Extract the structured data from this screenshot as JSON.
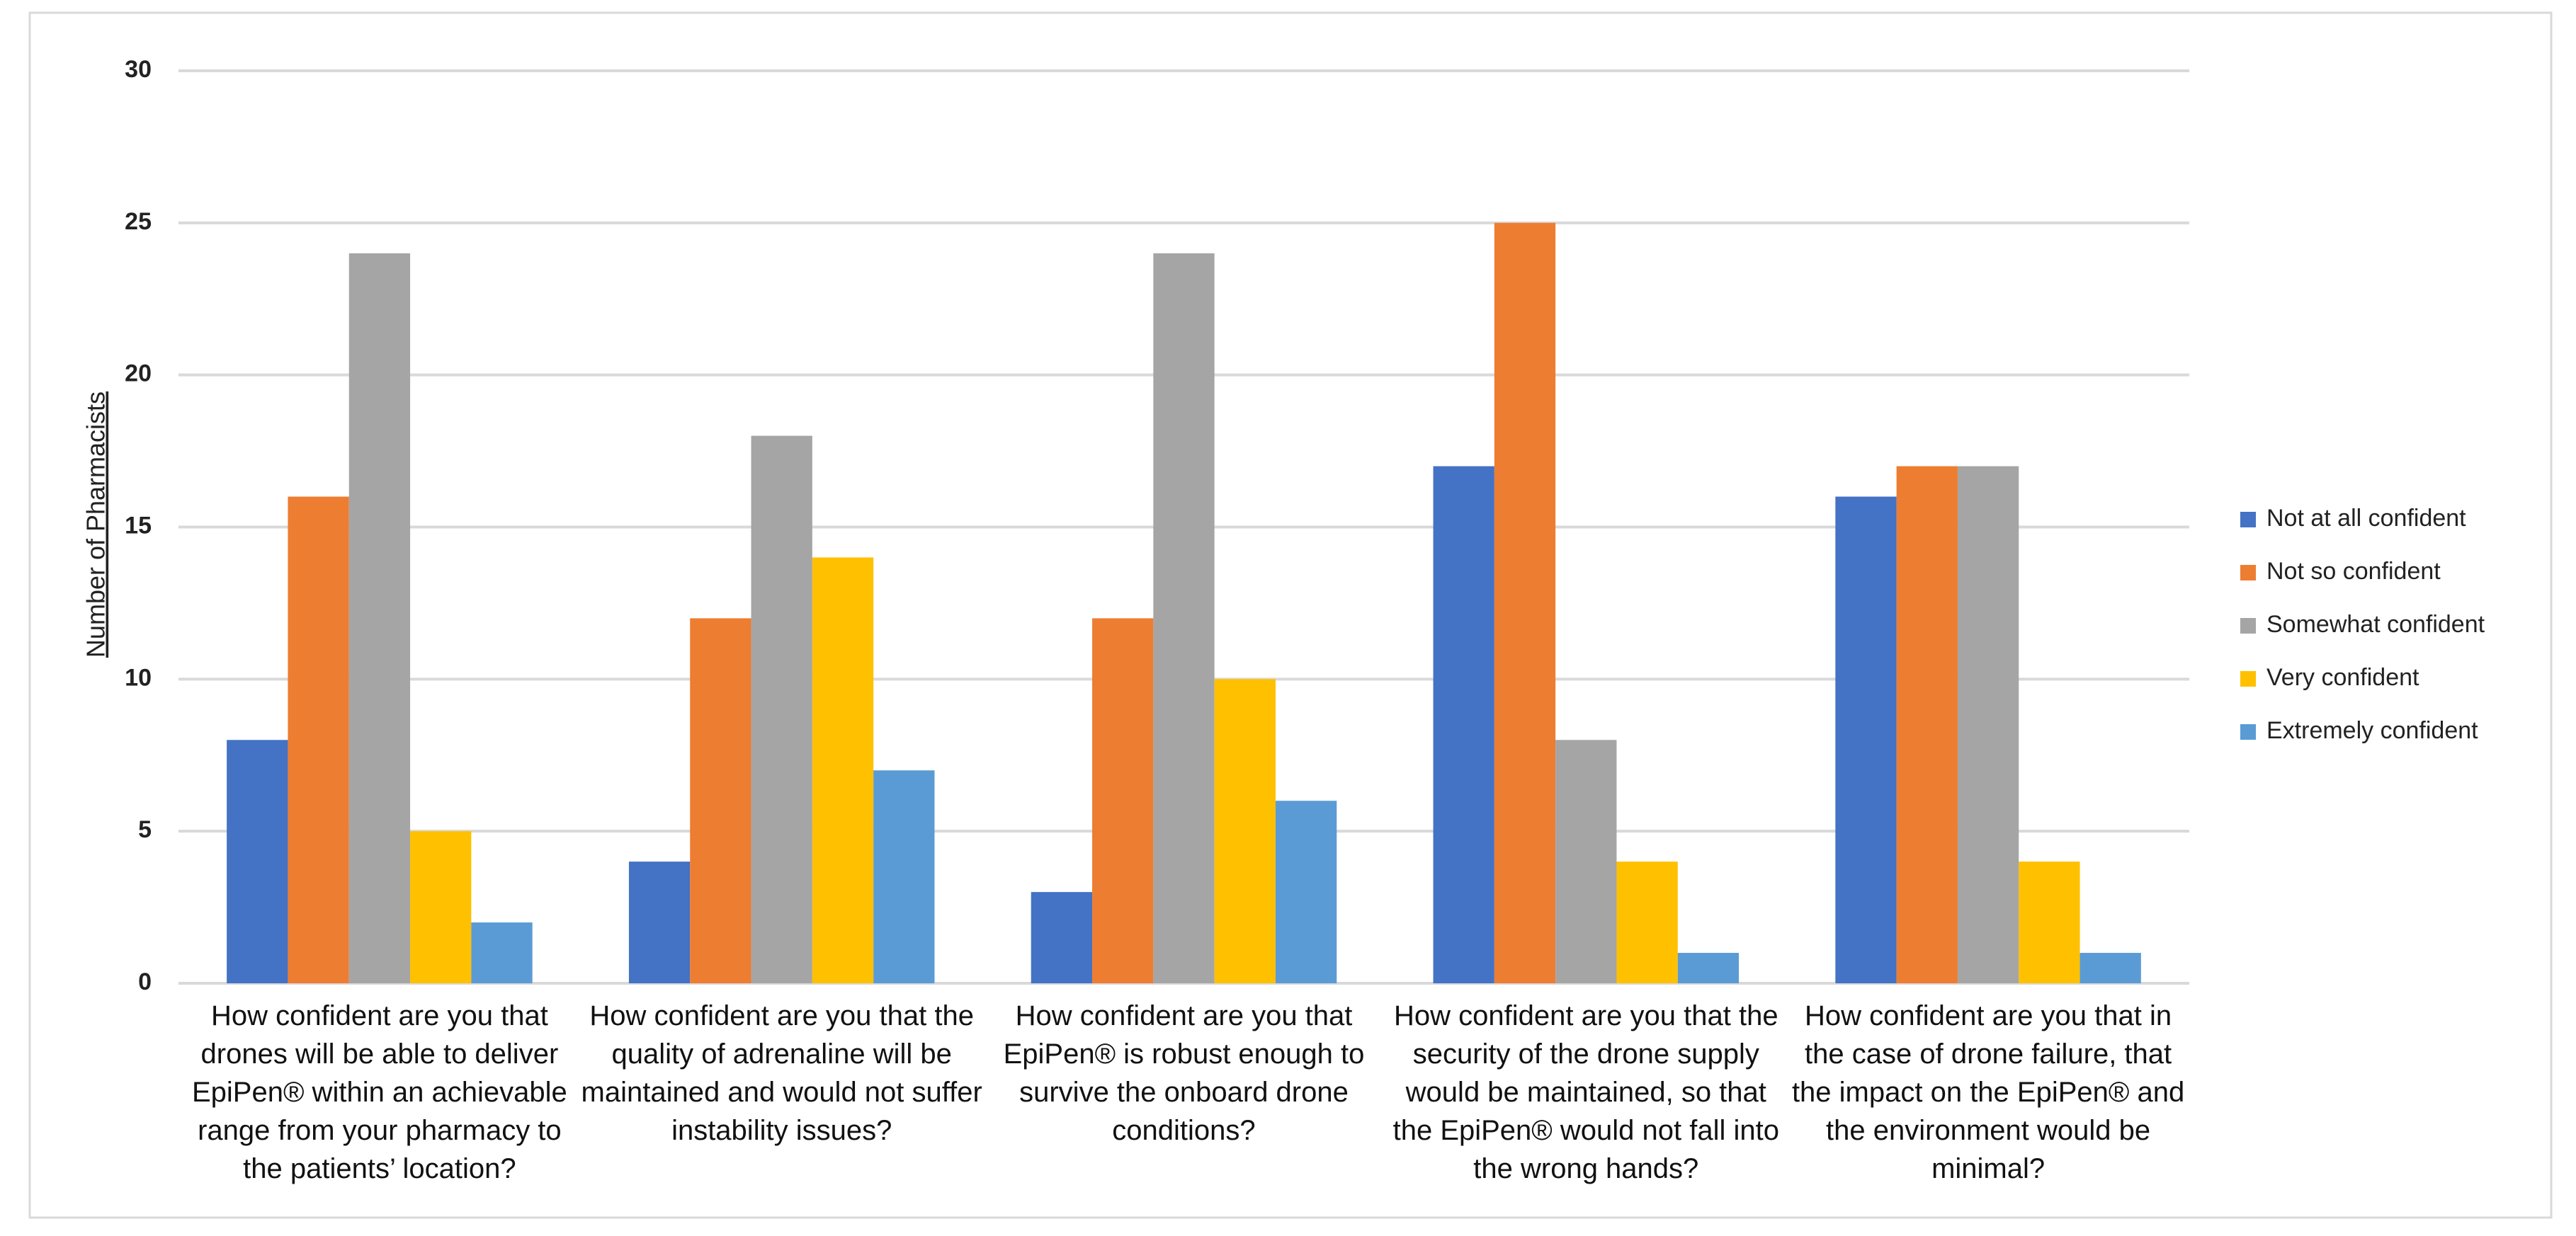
{
  "chart_data": {
    "type": "bar",
    "y_label": "Number of Pharmacists",
    "categories": [
      "How confident are you that drones will be able to deliver EpiPen® within an achievable range from your pharmacy to the patients’ location?",
      "How confident are you that the quality of adrenaline will be maintained and would not suffer instability issues?",
      "How confident are you that EpiPen® is robust enough to survive the onboard drone conditions?",
      "How confident are you that the security of the drone supply would be maintained, so that the EpiPen® would not fall into the wrong hands?",
      "How confident are you that in the case of drone failure, that the impact on the EpiPen® and the environment would be minimal?"
    ],
    "series": [
      {
        "name": "Not at all confident",
        "color": "#4472c4",
        "values": [
          8,
          4,
          3,
          17,
          16
        ]
      },
      {
        "name": "Not so confident",
        "color": "#ed7d31",
        "values": [
          16,
          12,
          12,
          25,
          17
        ]
      },
      {
        "name": "Somewhat confident",
        "color": "#a5a5a5",
        "values": [
          24,
          18,
          24,
          8,
          17
        ]
      },
      {
        "name": "Very confident",
        "color": "#ffc000",
        "values": [
          5,
          14,
          10,
          4,
          4
        ]
      },
      {
        "name": "Extremely confident",
        "color": "#5b9bd5",
        "values": [
          2,
          7,
          6,
          1,
          1
        ]
      }
    ],
    "ylim": [
      0,
      30
    ],
    "yticks": [
      0,
      5,
      10,
      15,
      20,
      25,
      30
    ],
    "grid": true,
    "legend": "right"
  }
}
